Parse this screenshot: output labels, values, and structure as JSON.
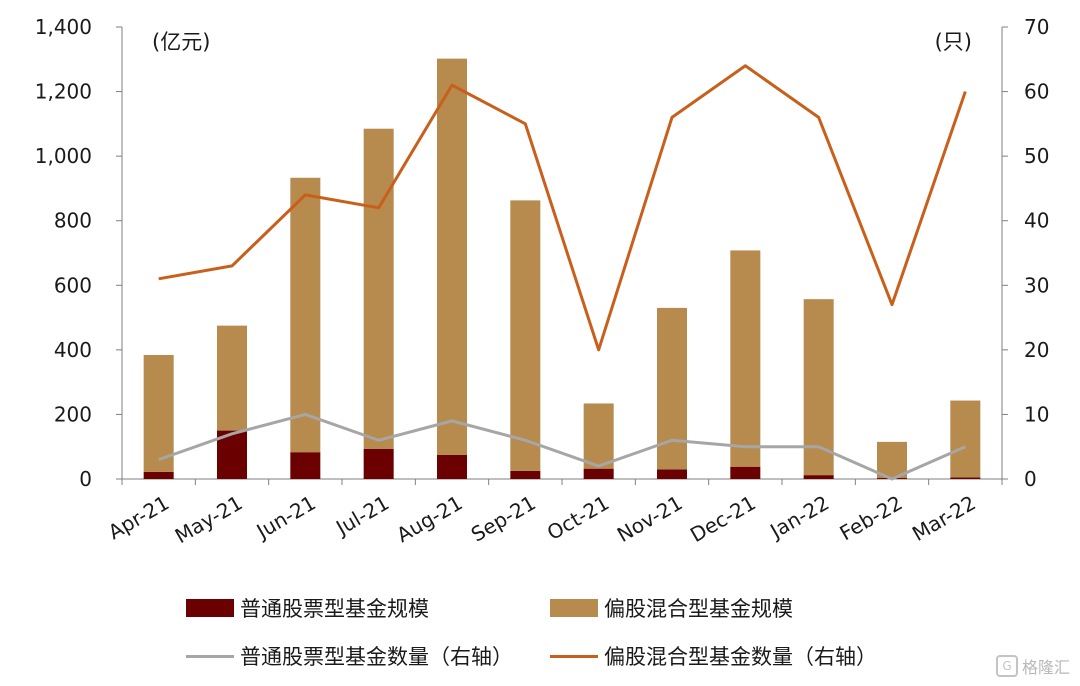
{
  "chart_data": {
    "type": "bar",
    "categories": [
      "Apr-21",
      "May-21",
      "Jun-21",
      "Jul-21",
      "Aug-21",
      "Sep-21",
      "Oct-21",
      "Nov-21",
      "Dec-21",
      "Jan-22",
      "Feb-22",
      "Mar-22"
    ],
    "left_axis": {
      "unit": "(亿元)",
      "ylim": [
        0,
        1400
      ],
      "ticks": [
        0,
        200,
        400,
        600,
        800,
        1000,
        1200,
        1400
      ],
      "tick_labels": [
        "0",
        "200",
        "400",
        "600",
        "800",
        "1,000",
        "1,200",
        "1,400"
      ]
    },
    "right_axis": {
      "unit": "(只)",
      "ylim": [
        0,
        70
      ],
      "ticks": [
        0,
        10,
        20,
        30,
        40,
        50,
        60,
        70
      ],
      "tick_labels": [
        "0",
        "10",
        "20",
        "30",
        "40",
        "50",
        "60",
        "70"
      ]
    },
    "series": [
      {
        "name": "普通股票型基金规模",
        "kind": "bar",
        "axis": "left",
        "color": "#6b0000",
        "values": [
          22,
          150,
          83,
          93,
          75,
          25,
          32,
          30,
          38,
          12,
          3,
          5
        ]
      },
      {
        "name": "偏股混合型基金规模",
        "kind": "bar",
        "axis": "left",
        "color": "#b78a4e",
        "values": [
          362,
          325,
          850,
          992,
          1227,
          838,
          202,
          500,
          670,
          545,
          112,
          238
        ]
      },
      {
        "name": "普通股票型基金数量（右轴）",
        "kind": "line",
        "axis": "right",
        "color": "#a6a6a6",
        "values": [
          3,
          7,
          10,
          6,
          9,
          6,
          2,
          6,
          5,
          5,
          0,
          5
        ]
      },
      {
        "name": "偏股混合型基金数量（右轴）",
        "kind": "line",
        "axis": "right",
        "color": "#c8601c",
        "values": [
          31,
          33,
          44,
          42,
          61,
          55,
          20,
          56,
          64,
          56,
          27,
          60
        ]
      }
    ],
    "grid": false,
    "legend_position": "bottom"
  },
  "watermark": {
    "text": "格隆汇",
    "icon": "G"
  }
}
